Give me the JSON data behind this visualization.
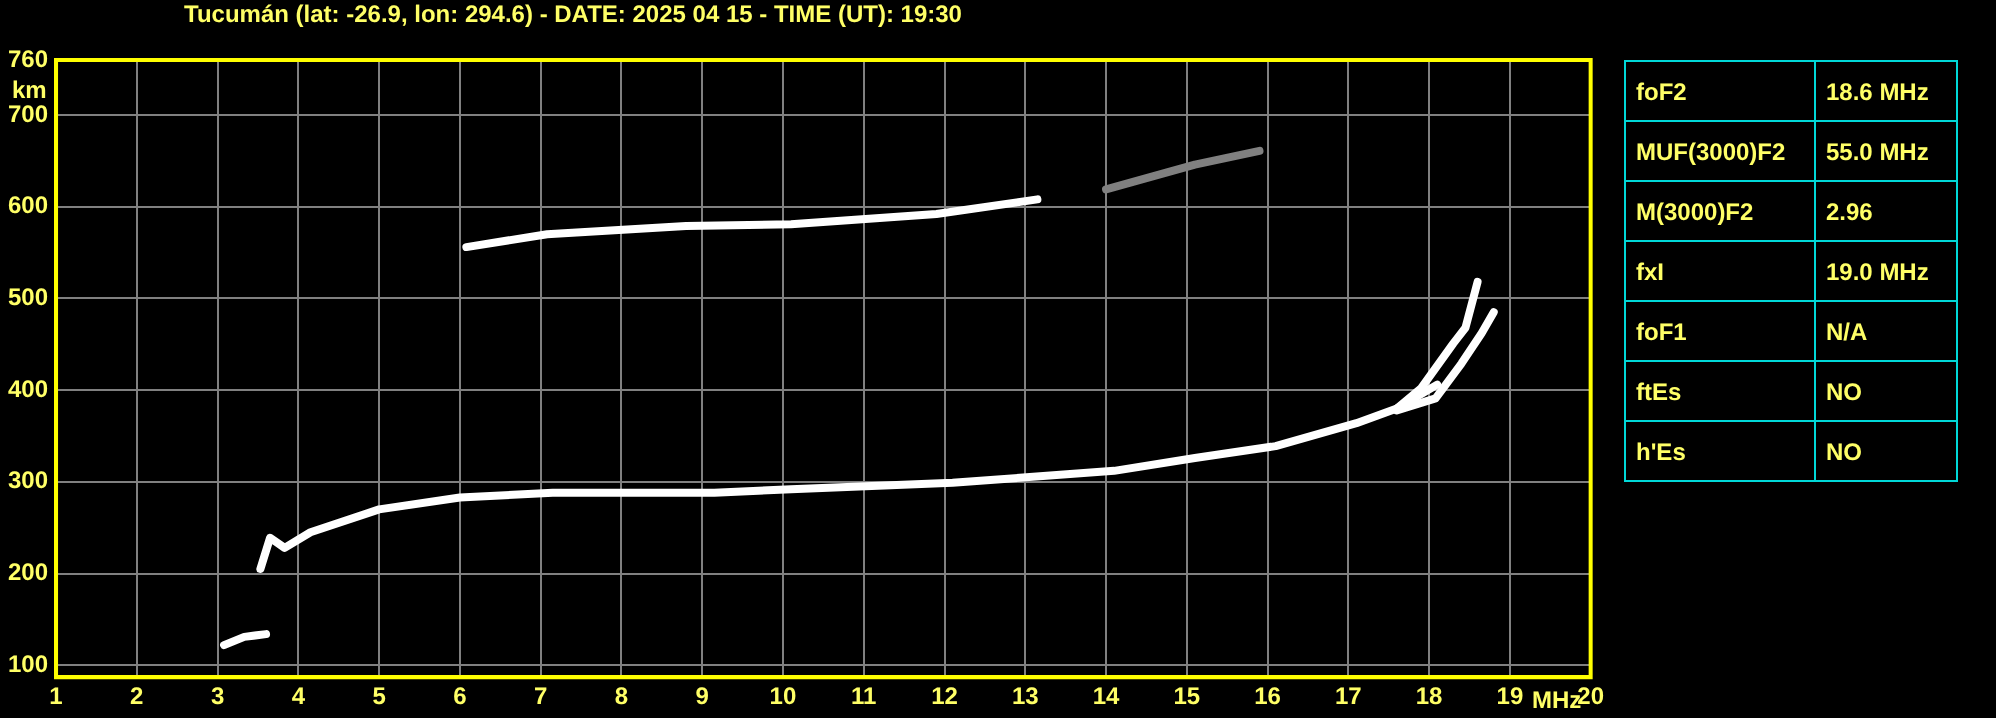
{
  "chart_data": [
    {
      "type": "line",
      "title": "Tucumán (lat: -26.9, lon: 294.6) - DATE: 2025 04 15 - TIME (UT): 19:30",
      "xlabel": "MHz",
      "ylabel": "km",
      "xlim": [
        1,
        20
      ],
      "xticks": [
        1,
        2,
        3,
        4,
        5,
        6,
        7,
        8,
        9,
        10,
        11,
        12,
        13,
        14,
        15,
        16,
        17,
        18,
        19,
        20
      ],
      "ylim": [
        87,
        760
      ],
      "yticks": [
        100,
        200,
        300,
        400,
        500,
        600,
        700,
        760
      ],
      "grid": true,
      "legend": false,
      "marker": "none",
      "series": [
        {
          "color": "#ffffff",
          "x": [
            3.53,
            3.65,
            3.83,
            4.15,
            5.0,
            6.0,
            7.15,
            9.15,
            10.1,
            12.1,
            14.1,
            15.1,
            16.1,
            17.1,
            17.6,
            18.1
          ],
          "values": [
            205,
            239,
            228,
            245,
            270,
            283,
            288,
            288,
            292,
            299,
            312,
            326,
            339,
            364,
            380,
            406
          ]
        },
        {
          "color": "#ffffff",
          "x": [
            17.6,
            17.9,
            18.3,
            18.45,
            18.6
          ],
          "values": [
            380,
            402,
            451,
            468,
            518
          ]
        },
        {
          "color": "#ffffff",
          "x": [
            17.6,
            18.08,
            18.4,
            18.65,
            18.8
          ],
          "values": [
            378,
            391,
            429,
            462,
            485
          ]
        },
        {
          "color": "#ffffff",
          "x": [
            6.08,
            7.08,
            8.8,
            10.1,
            11.9,
            13.15
          ],
          "values": [
            556,
            570,
            579,
            581,
            592,
            608
          ]
        },
        {
          "color": "#808080",
          "x": [
            14.0,
            15.1,
            15.9
          ],
          "values": [
            619,
            646,
            661
          ]
        },
        {
          "color": "#ffffff",
          "x": [
            3.08,
            3.33,
            3.6
          ],
          "values": [
            122,
            131,
            134
          ]
        }
      ]
    },
    {
      "type": "other",
      "categories": [
        "foF2",
        "MUF(3000)F2",
        "M(3000)F2",
        "fxI",
        "foF1",
        "ftEs",
        "h'Es"
      ],
      "value_labels": [
        "18.6 MHz",
        "55.0 MHz",
        "2.96",
        "19.0 MHz",
        "N/A",
        "NO",
        "NO"
      ]
    }
  ]
}
